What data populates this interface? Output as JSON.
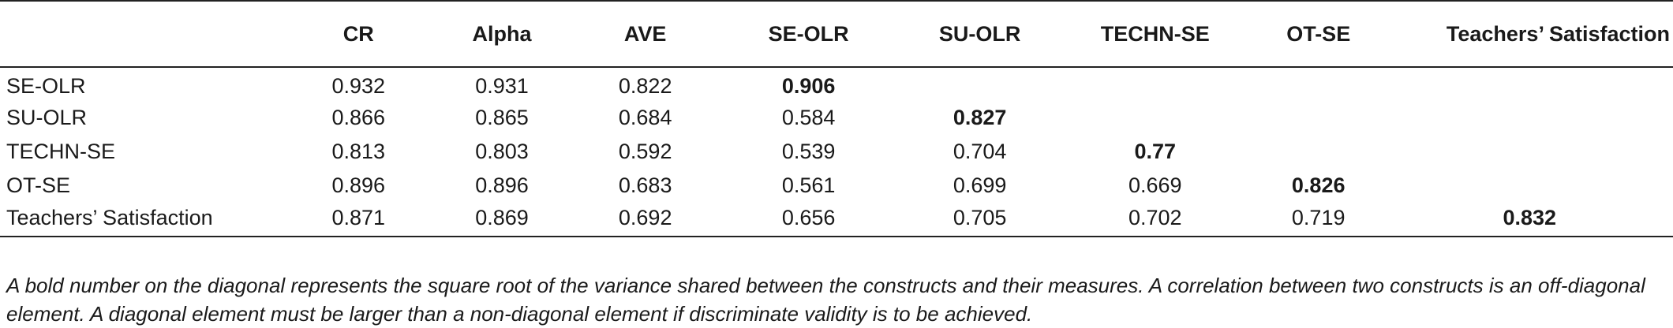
{
  "table": {
    "headers": [
      "",
      "CR",
      "Alpha",
      "AVE",
      "SE-OLR",
      "SU-OLR",
      "TECHN-SE",
      "OT-SE",
      "Teachers’ Satisfaction"
    ],
    "rows": [
      {
        "label": "SE-OLR",
        "cr": "0.932",
        "alpha": "0.931",
        "ave": "0.822",
        "se_olr": "0.906",
        "su_olr": "",
        "techn_se": "",
        "ot_se": "",
        "satisfaction": ""
      },
      {
        "label": "SU-OLR",
        "cr": "0.866",
        "alpha": "0.865",
        "ave": "0.684",
        "se_olr": "0.584",
        "su_olr": "0.827",
        "techn_se": "",
        "ot_se": "",
        "satisfaction": ""
      },
      {
        "label": "TECHN-SE",
        "cr": "0.813",
        "alpha": "0.803",
        "ave": "0.592",
        "se_olr": "0.539",
        "su_olr": "0.704",
        "techn_se": "0.77",
        "ot_se": "",
        "satisfaction": ""
      },
      {
        "label": "OT-SE",
        "cr": "0.896",
        "alpha": "0.896",
        "ave": "0.683",
        "se_olr": "0.561",
        "su_olr": "0.699",
        "techn_se": "0.669",
        "ot_se": "0.826",
        "satisfaction": ""
      },
      {
        "label": "Teachers’ Satisfaction",
        "cr": "0.871",
        "alpha": "0.869",
        "ave": "0.692",
        "se_olr": "0.656",
        "su_olr": "0.705",
        "techn_se": "0.702",
        "ot_se": "0.719",
        "satisfaction": "0.832"
      }
    ]
  },
  "footnote": "A bold number on the diagonal represents the square root of the variance shared between the constructs and their measures. A correlation between two constructs is an off-diagonal element. A diagonal element must be larger than a non-diagonal element if discriminate validity is to be achieved."
}
